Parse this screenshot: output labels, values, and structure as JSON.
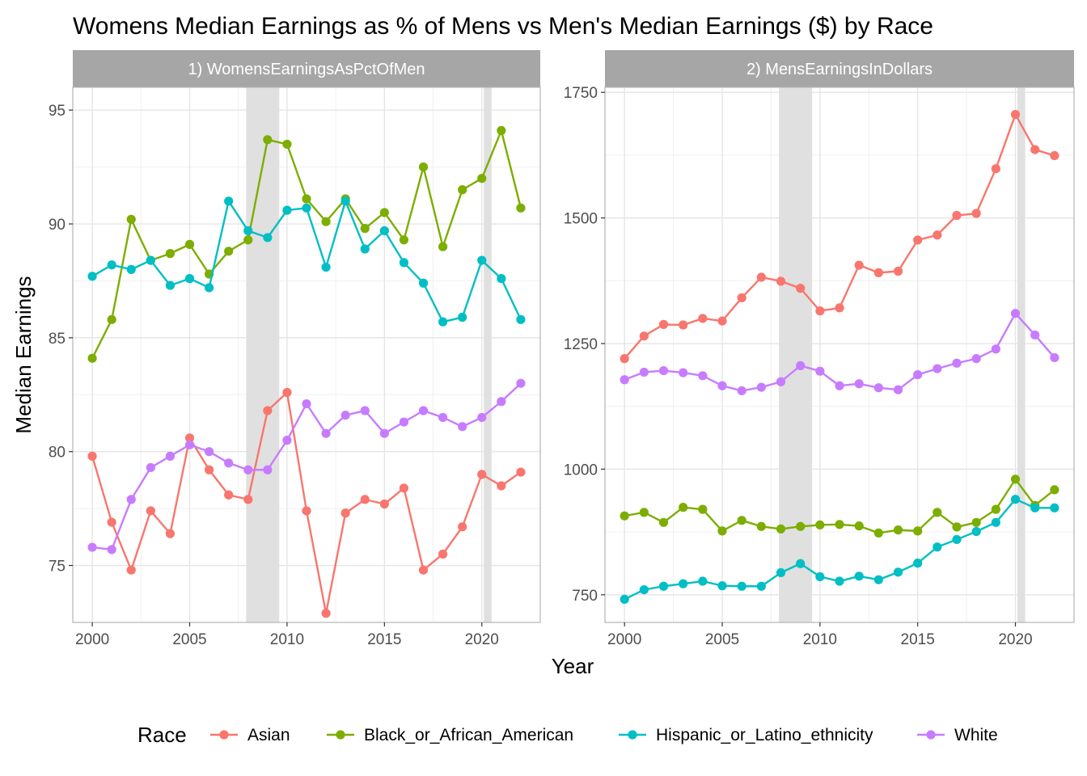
{
  "chart_data": {
    "title": "Womens Median Earnings as % of Mens vs Men's Median Earnings ($) by Race",
    "xlabel": "Year",
    "ylabel": "Median Earnings",
    "legend_title": "Race",
    "legend_position": "bottom",
    "grid": true,
    "colors": {
      "Asian": "#F8766D",
      "Black_or_African_American": "#7CAE00",
      "Hispanic_or_Latino_ethnicity": "#00BFC4",
      "White": "#C77CFF",
      "strip": "#A6A6A6",
      "shade": "#E0E0E0",
      "grid": "#E5E5E5",
      "border": "#B3B3B3"
    },
    "recession_shading": [
      [
        2007.9,
        2009.6
      ],
      [
        2020.1,
        2020.5
      ]
    ],
    "panels": [
      {
        "type": "line",
        "strip_label": "1) WomensEarningsAsPctOfMen",
        "x": [
          2000,
          2001,
          2002,
          2003,
          2004,
          2005,
          2006,
          2007,
          2008,
          2009,
          2010,
          2011,
          2012,
          2013,
          2014,
          2015,
          2016,
          2017,
          2018,
          2019,
          2020,
          2021,
          2022
        ],
        "xlim": [
          1999.0,
          2023.0
        ],
        "ylim": [
          72.5,
          96.0
        ],
        "x_ticks": [
          2000,
          2005,
          2010,
          2015,
          2020
        ],
        "y_ticks": [
          75,
          80,
          85,
          90,
          95
        ],
        "series": [
          {
            "name": "Asian",
            "values": [
              79.8,
              76.9,
              74.8,
              77.4,
              76.4,
              80.6,
              79.2,
              78.1,
              77.9,
              81.8,
              82.6,
              77.4,
              72.9,
              77.3,
              77.9,
              77.7,
              78.4,
              74.8,
              75.5,
              76.7,
              79.0,
              78.5,
              79.1
            ]
          },
          {
            "name": "Black_or_African_American",
            "values": [
              84.1,
              85.8,
              90.2,
              88.4,
              88.7,
              89.1,
              87.8,
              88.8,
              89.3,
              93.7,
              93.5,
              91.1,
              90.1,
              91.1,
              89.8,
              90.5,
              89.3,
              92.5,
              89.0,
              91.5,
              92.0,
              94.1,
              90.7
            ]
          },
          {
            "name": "Hispanic_or_Latino_ethnicity",
            "values": [
              87.7,
              88.2,
              88.0,
              88.4,
              87.3,
              87.6,
              87.2,
              91.0,
              89.7,
              89.4,
              90.6,
              90.7,
              88.1,
              91.0,
              88.9,
              89.7,
              88.3,
              87.4,
              85.7,
              85.9,
              88.4,
              87.6,
              85.8
            ]
          },
          {
            "name": "White",
            "values": [
              75.8,
              75.7,
              77.9,
              79.3,
              79.8,
              80.3,
              80.0,
              79.5,
              79.2,
              79.2,
              80.5,
              82.1,
              80.8,
              81.6,
              81.8,
              80.8,
              81.3,
              81.8,
              81.5,
              81.1,
              81.5,
              82.2,
              83.0
            ]
          }
        ]
      },
      {
        "type": "line",
        "strip_label": "2) MensEarningsInDollars",
        "x": [
          2000,
          2001,
          2002,
          2003,
          2004,
          2005,
          2006,
          2007,
          2008,
          2009,
          2010,
          2011,
          2012,
          2013,
          2014,
          2015,
          2016,
          2017,
          2018,
          2019,
          2020,
          2021,
          2022
        ],
        "xlim": [
          1999.0,
          2023.0
        ],
        "ylim": [
          695,
          1760
        ],
        "x_ticks": [
          2000,
          2005,
          2010,
          2015,
          2020
        ],
        "y_ticks": [
          750,
          1000,
          1250,
          1500,
          1750
        ],
        "series": [
          {
            "name": "Asian",
            "values": [
              1220,
              1265,
              1288,
              1287,
              1300,
              1295,
              1341,
              1382,
              1374,
              1360,
              1315,
              1321,
              1406,
              1391,
              1394,
              1456,
              1466,
              1505,
              1509,
              1598,
              1706,
              1636,
              1624
            ]
          },
          {
            "name": "Black_or_African_American",
            "values": [
              907,
              914,
              894,
              924,
              920,
              877,
              898,
              886,
              881,
              886,
              889,
              890,
              887,
              873,
              879,
              877,
              914,
              885,
              894,
              920,
              980,
              928,
              959
            ]
          },
          {
            "name": "Hispanic_or_Latino_ethnicity",
            "values": [
              741,
              760,
              767,
              772,
              777,
              768,
              767,
              767,
              794,
              812,
              786,
              777,
              787,
              780,
              795,
              813,
              845,
              860,
              876,
              894,
              940,
              923,
              923
            ]
          },
          {
            "name": "White",
            "values": [
              1178,
              1193,
              1196,
              1192,
              1186,
              1166,
              1156,
              1163,
              1174,
              1206,
              1195,
              1166,
              1170,
              1162,
              1158,
              1188,
              1200,
              1211,
              1220,
              1239,
              1310,
              1267,
              1222
            ]
          }
        ]
      }
    ]
  }
}
